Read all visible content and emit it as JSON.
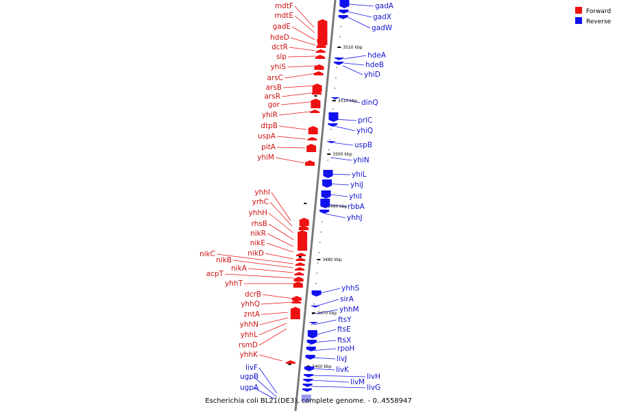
{
  "caption": "Escherichia coli BL21(DE3), complete genome. - 0..4558947",
  "legend": [
    {
      "label": "Forward",
      "color": "#ee1111"
    },
    {
      "label": "Reverse",
      "color": "#1111ee"
    }
  ],
  "scale_ticks": [
    "3520 kbp",
    "3510 kbp",
    "3500 kbp",
    "3490 kbp",
    "3480 kbp",
    "3470 kbp",
    "3460 kbp"
  ],
  "forward_genes": [
    "mdtF",
    "mdtE",
    "gadE",
    "hdeD",
    "dctR",
    "slp",
    "yhiS",
    "arsC",
    "arsB",
    "arsR",
    "gor",
    "yhiR",
    "dtpB",
    "uspA",
    "pitA",
    "yhiM",
    "yhhI",
    "yrhC",
    "yhhH",
    "rhsB",
    "nikR",
    "nikE",
    "nikD",
    "nikC",
    "nikB",
    "nikA",
    "acpT",
    "yhhT",
    "dcrB",
    "yhhQ",
    "zntA",
    "yhhN",
    "yhhL",
    "rsmD",
    "yhhK"
  ],
  "reverse_genes": [
    "gadA",
    "gadX",
    "gadW",
    "hdeA",
    "hdeB",
    "yhiD",
    "dinQ",
    "prlC",
    "yhiQ",
    "uspB",
    "yhiN",
    "yhiL",
    "yhiJ",
    "yhiI",
    "rbbA",
    "yhhJ",
    "yhhS",
    "sirA",
    "yhhM",
    "ftsY",
    "ftsE",
    "ftsX",
    "rpoH",
    "livJ",
    "livK",
    "livH",
    "livM",
    "livG",
    "livF",
    "ugpB",
    "ugpA"
  ]
}
